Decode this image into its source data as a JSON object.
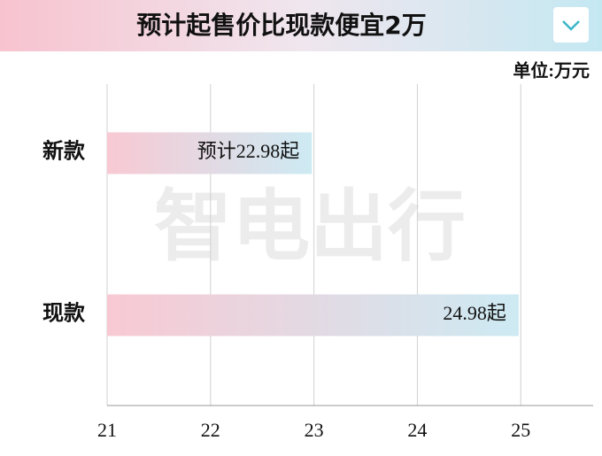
{
  "chart_data": {
    "type": "hbar",
    "title": "预计起售价比现款便宜2万",
    "unit_label": "单位:万元",
    "watermark": "智电出行",
    "categories": [
      "新款",
      "现款"
    ],
    "values": [
      22.98,
      24.98
    ],
    "value_labels": [
      "预计22.98起",
      "24.98起"
    ],
    "colors": [
      "#f8c9d3",
      "#cdeaf3"
    ],
    "xlim": [
      21,
      25.7
    ],
    "xticks": [
      21,
      22,
      23,
      24,
      25
    ],
    "grid": true
  }
}
